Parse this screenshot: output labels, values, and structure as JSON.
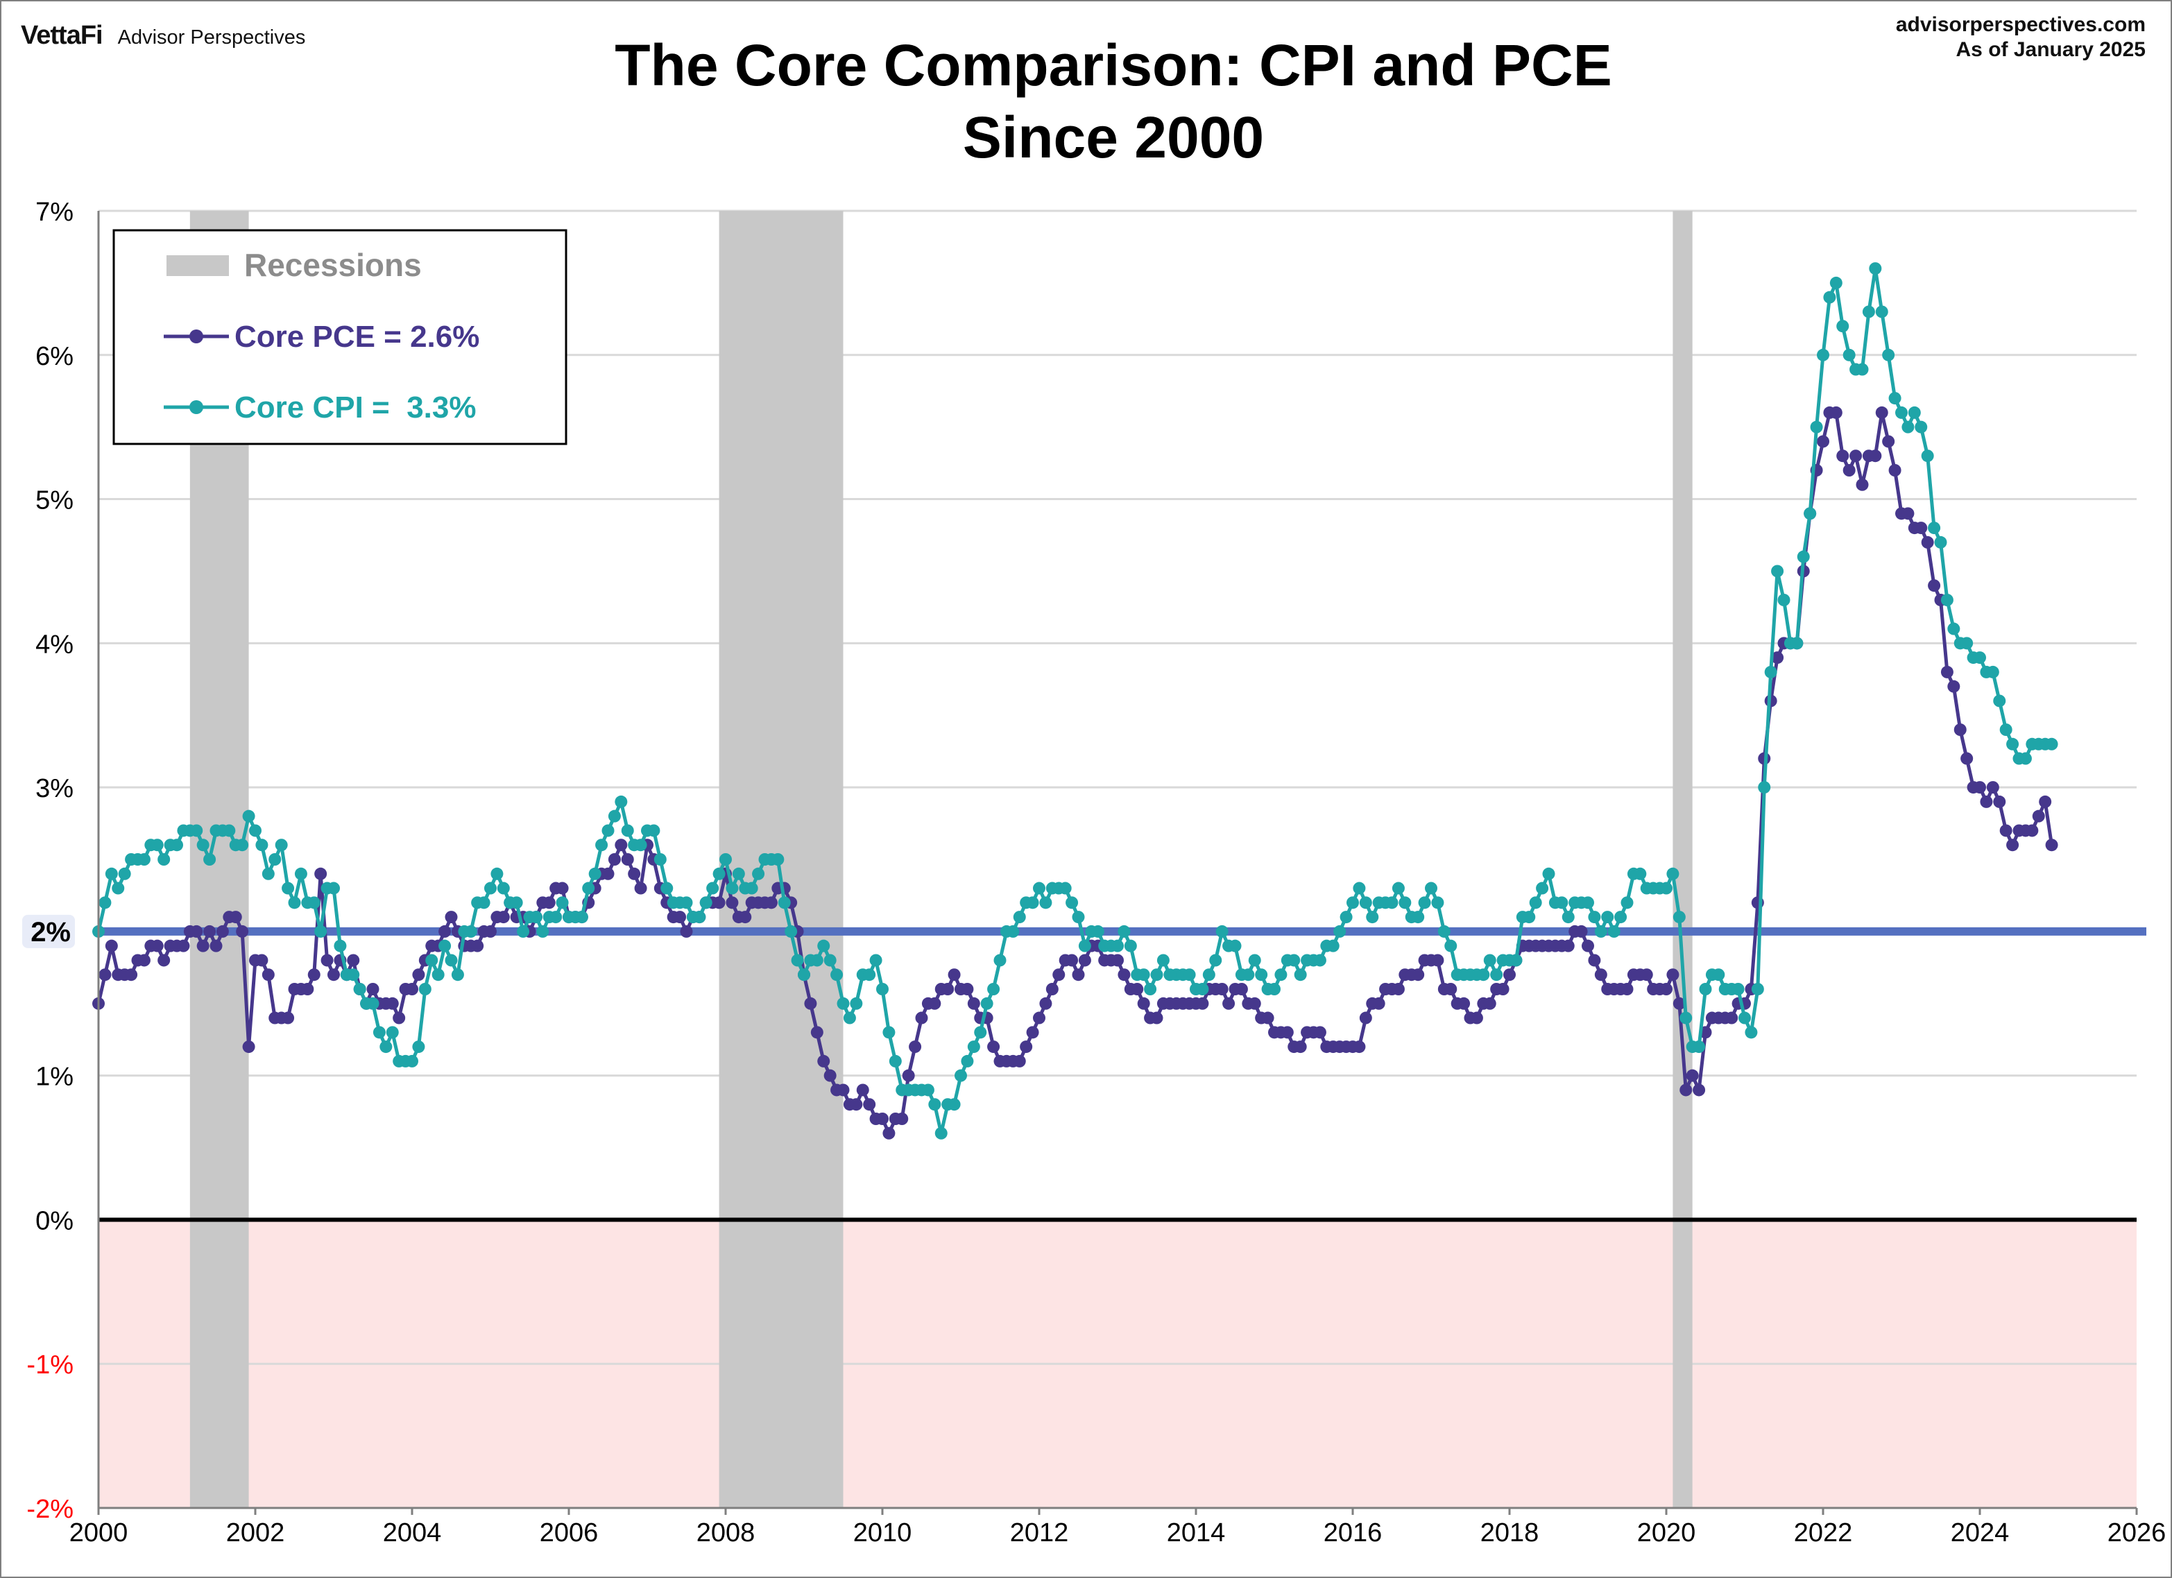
{
  "header": {
    "logo_brand": "VettaFi",
    "logo_sub": "Advisor Perspectives",
    "site": "advisorperspectives.com",
    "as_of": "As of January 2025"
  },
  "chart_data": {
    "type": "line",
    "title": "The Core Comparison: CPI and PCE",
    "subtitle": "Since 2000",
    "xlabel": "",
    "ylabel": "",
    "xlim": [
      2000,
      2026
    ],
    "ylim": [
      -2,
      7
    ],
    "x_ticks": [
      "2000",
      "2002",
      "2004",
      "2006",
      "2008",
      "2010",
      "2012",
      "2014",
      "2016",
      "2018",
      "2020",
      "2022",
      "2024",
      "2026"
    ],
    "y_ticks": [
      "7%",
      "6%",
      "5%",
      "4%",
      "3%",
      "2%",
      "1%",
      "0%",
      "-1%",
      "-2%"
    ],
    "grid": "horizontal",
    "frequency": "monthly",
    "start": "2000-01",
    "reference_line": {
      "value": 2,
      "label": "2%",
      "color": "#5470C0"
    },
    "zero_line": {
      "value": 0,
      "color": "#000000"
    },
    "negative_zone_color": "#FDE4E4",
    "recessions": [
      {
        "start": "2001-03",
        "end": "2001-11"
      },
      {
        "start": "2007-12",
        "end": "2009-06"
      },
      {
        "start": "2020-02",
        "end": "2020-04"
      }
    ],
    "legend": {
      "position": "top-left",
      "recessions_label": "Recessions",
      "recession_color": "#C8C8C8"
    },
    "series": [
      {
        "name": "Core PCE = 2.6%",
        "color": "#46378C",
        "values": [
          1.5,
          1.7,
          1.9,
          1.7,
          1.7,
          1.7,
          1.8,
          1.8,
          1.9,
          1.9,
          1.8,
          1.9,
          1.9,
          1.9,
          2.0,
          2.0,
          1.9,
          2.0,
          1.9,
          2.0,
          2.1,
          2.1,
          2.0,
          1.2,
          1.8,
          1.8,
          1.7,
          1.4,
          1.4,
          1.4,
          1.6,
          1.6,
          1.6,
          1.7,
          2.4,
          1.8,
          1.7,
          1.8,
          1.7,
          1.8,
          1.6,
          1.5,
          1.6,
          1.5,
          1.5,
          1.5,
          1.4,
          1.6,
          1.6,
          1.7,
          1.8,
          1.9,
          1.9,
          2.0,
          2.1,
          2.0,
          1.9,
          1.9,
          1.9,
          2.0,
          2.0,
          2.1,
          2.1,
          2.2,
          2.1,
          2.1,
          2.0,
          2.1,
          2.2,
          2.2,
          2.3,
          2.3,
          2.1,
          2.1,
          2.1,
          2.2,
          2.3,
          2.4,
          2.4,
          2.5,
          2.6,
          2.5,
          2.4,
          2.3,
          2.6,
          2.5,
          2.3,
          2.2,
          2.1,
          2.1,
          2.0,
          2.1,
          2.1,
          2.2,
          2.2,
          2.2,
          2.4,
          2.2,
          2.1,
          2.1,
          2.2,
          2.2,
          2.2,
          2.2,
          2.3,
          2.3,
          2.2,
          2.0,
          1.7,
          1.5,
          1.3,
          1.1,
          1.0,
          0.9,
          0.9,
          0.8,
          0.8,
          0.9,
          0.8,
          0.7,
          0.7,
          0.6,
          0.7,
          0.7,
          1.0,
          1.2,
          1.4,
          1.5,
          1.5,
          1.6,
          1.6,
          1.7,
          1.6,
          1.6,
          1.5,
          1.4,
          1.4,
          1.2,
          1.1,
          1.1,
          1.1,
          1.1,
          1.2,
          1.3,
          1.4,
          1.5,
          1.6,
          1.7,
          1.8,
          1.8,
          1.7,
          1.8,
          1.9,
          1.9,
          1.8,
          1.8,
          1.8,
          1.7,
          1.6,
          1.6,
          1.5,
          1.4,
          1.4,
          1.5,
          1.5,
          1.5,
          1.5,
          1.5,
          1.5,
          1.5,
          1.6,
          1.6,
          1.6,
          1.5,
          1.6,
          1.6,
          1.5,
          1.5,
          1.4,
          1.4,
          1.3,
          1.3,
          1.3,
          1.2,
          1.2,
          1.3,
          1.3,
          1.3,
          1.2,
          1.2,
          1.2,
          1.2,
          1.2,
          1.2,
          1.4,
          1.5,
          1.5,
          1.6,
          1.6,
          1.6,
          1.7,
          1.7,
          1.7,
          1.8,
          1.8,
          1.8,
          1.6,
          1.6,
          1.5,
          1.5,
          1.4,
          1.4,
          1.5,
          1.5,
          1.6,
          1.6,
          1.7,
          1.8,
          1.9,
          1.9,
          1.9,
          1.9,
          1.9,
          1.9,
          1.9,
          1.9,
          2.0,
          2.0,
          1.9,
          1.8,
          1.7,
          1.6,
          1.6,
          1.6,
          1.6,
          1.7,
          1.7,
          1.7,
          1.6,
          1.6,
          1.6,
          1.7,
          1.5,
          0.9,
          1.0,
          0.9,
          1.3,
          1.4,
          1.4,
          1.4,
          1.4,
          1.5,
          1.5,
          1.6,
          2.2,
          3.2,
          3.6,
          3.9,
          4.0,
          4.0,
          4.0,
          4.5,
          4.9,
          5.2,
          5.4,
          5.6,
          5.6,
          5.3,
          5.2,
          5.3,
          5.1,
          5.3,
          5.3,
          5.6,
          5.4,
          5.2,
          4.9,
          4.9,
          4.8,
          4.8,
          4.7,
          4.4,
          4.3,
          3.8,
          3.7,
          3.4,
          3.2,
          3.0,
          3.0,
          2.9,
          3.0,
          2.9,
          2.7,
          2.6,
          2.7,
          2.7,
          2.7,
          2.8,
          2.9,
          2.6
        ]
      },
      {
        "name": "Core CPI =  3.3%",
        "color": "#1FA5A8",
        "values": [
          2.0,
          2.2,
          2.4,
          2.3,
          2.4,
          2.5,
          2.5,
          2.5,
          2.6,
          2.6,
          2.5,
          2.6,
          2.6,
          2.7,
          2.7,
          2.7,
          2.6,
          2.5,
          2.7,
          2.7,
          2.7,
          2.6,
          2.6,
          2.8,
          2.7,
          2.6,
          2.4,
          2.5,
          2.6,
          2.3,
          2.2,
          2.4,
          2.2,
          2.2,
          2.0,
          2.3,
          2.3,
          1.9,
          1.7,
          1.7,
          1.6,
          1.5,
          1.5,
          1.3,
          1.2,
          1.3,
          1.1,
          1.1,
          1.1,
          1.2,
          1.6,
          1.8,
          1.7,
          1.9,
          1.8,
          1.7,
          2.0,
          2.0,
          2.2,
          2.2,
          2.3,
          2.4,
          2.3,
          2.2,
          2.2,
          2.0,
          2.1,
          2.1,
          2.0,
          2.1,
          2.1,
          2.2,
          2.1,
          2.1,
          2.1,
          2.3,
          2.4,
          2.6,
          2.7,
          2.8,
          2.9,
          2.7,
          2.6,
          2.6,
          2.7,
          2.7,
          2.5,
          2.3,
          2.2,
          2.2,
          2.2,
          2.1,
          2.1,
          2.2,
          2.3,
          2.4,
          2.5,
          2.3,
          2.4,
          2.3,
          2.3,
          2.4,
          2.5,
          2.5,
          2.5,
          2.2,
          2.0,
          1.8,
          1.7,
          1.8,
          1.8,
          1.9,
          1.8,
          1.7,
          1.5,
          1.4,
          1.5,
          1.7,
          1.7,
          1.8,
          1.6,
          1.3,
          1.1,
          0.9,
          0.9,
          0.9,
          0.9,
          0.9,
          0.8,
          0.6,
          0.8,
          0.8,
          1.0,
          1.1,
          1.2,
          1.3,
          1.5,
          1.6,
          1.8,
          2.0,
          2.0,
          2.1,
          2.2,
          2.2,
          2.3,
          2.2,
          2.3,
          2.3,
          2.3,
          2.2,
          2.1,
          1.9,
          2.0,
          2.0,
          1.9,
          1.9,
          1.9,
          2.0,
          1.9,
          1.7,
          1.7,
          1.6,
          1.7,
          1.8,
          1.7,
          1.7,
          1.7,
          1.7,
          1.6,
          1.6,
          1.7,
          1.8,
          2.0,
          1.9,
          1.9,
          1.7,
          1.7,
          1.8,
          1.7,
          1.6,
          1.6,
          1.7,
          1.8,
          1.8,
          1.7,
          1.8,
          1.8,
          1.8,
          1.9,
          1.9,
          2.0,
          2.1,
          2.2,
          2.3,
          2.2,
          2.1,
          2.2,
          2.2,
          2.2,
          2.3,
          2.2,
          2.1,
          2.1,
          2.2,
          2.3,
          2.2,
          2.0,
          1.9,
          1.7,
          1.7,
          1.7,
          1.7,
          1.7,
          1.8,
          1.7,
          1.8,
          1.8,
          1.8,
          2.1,
          2.1,
          2.2,
          2.3,
          2.4,
          2.2,
          2.2,
          2.1,
          2.2,
          2.2,
          2.2,
          2.1,
          2.0,
          2.1,
          2.0,
          2.1,
          2.2,
          2.4,
          2.4,
          2.3,
          2.3,
          2.3,
          2.3,
          2.4,
          2.1,
          1.4,
          1.2,
          1.2,
          1.6,
          1.7,
          1.7,
          1.6,
          1.6,
          1.6,
          1.4,
          1.3,
          1.6,
          3.0,
          3.8,
          4.5,
          4.3,
          4.0,
          4.0,
          4.6,
          4.9,
          5.5,
          6.0,
          6.4,
          6.5,
          6.2,
          6.0,
          5.9,
          5.9,
          6.3,
          6.6,
          6.3,
          6.0,
          5.7,
          5.6,
          5.5,
          5.6,
          5.5,
          5.3,
          4.8,
          4.7,
          4.3,
          4.1,
          4.0,
          4.0,
          3.9,
          3.9,
          3.8,
          3.8,
          3.6,
          3.4,
          3.3,
          3.2,
          3.2,
          3.3,
          3.3,
          3.3,
          3.3
        ]
      }
    ]
  }
}
